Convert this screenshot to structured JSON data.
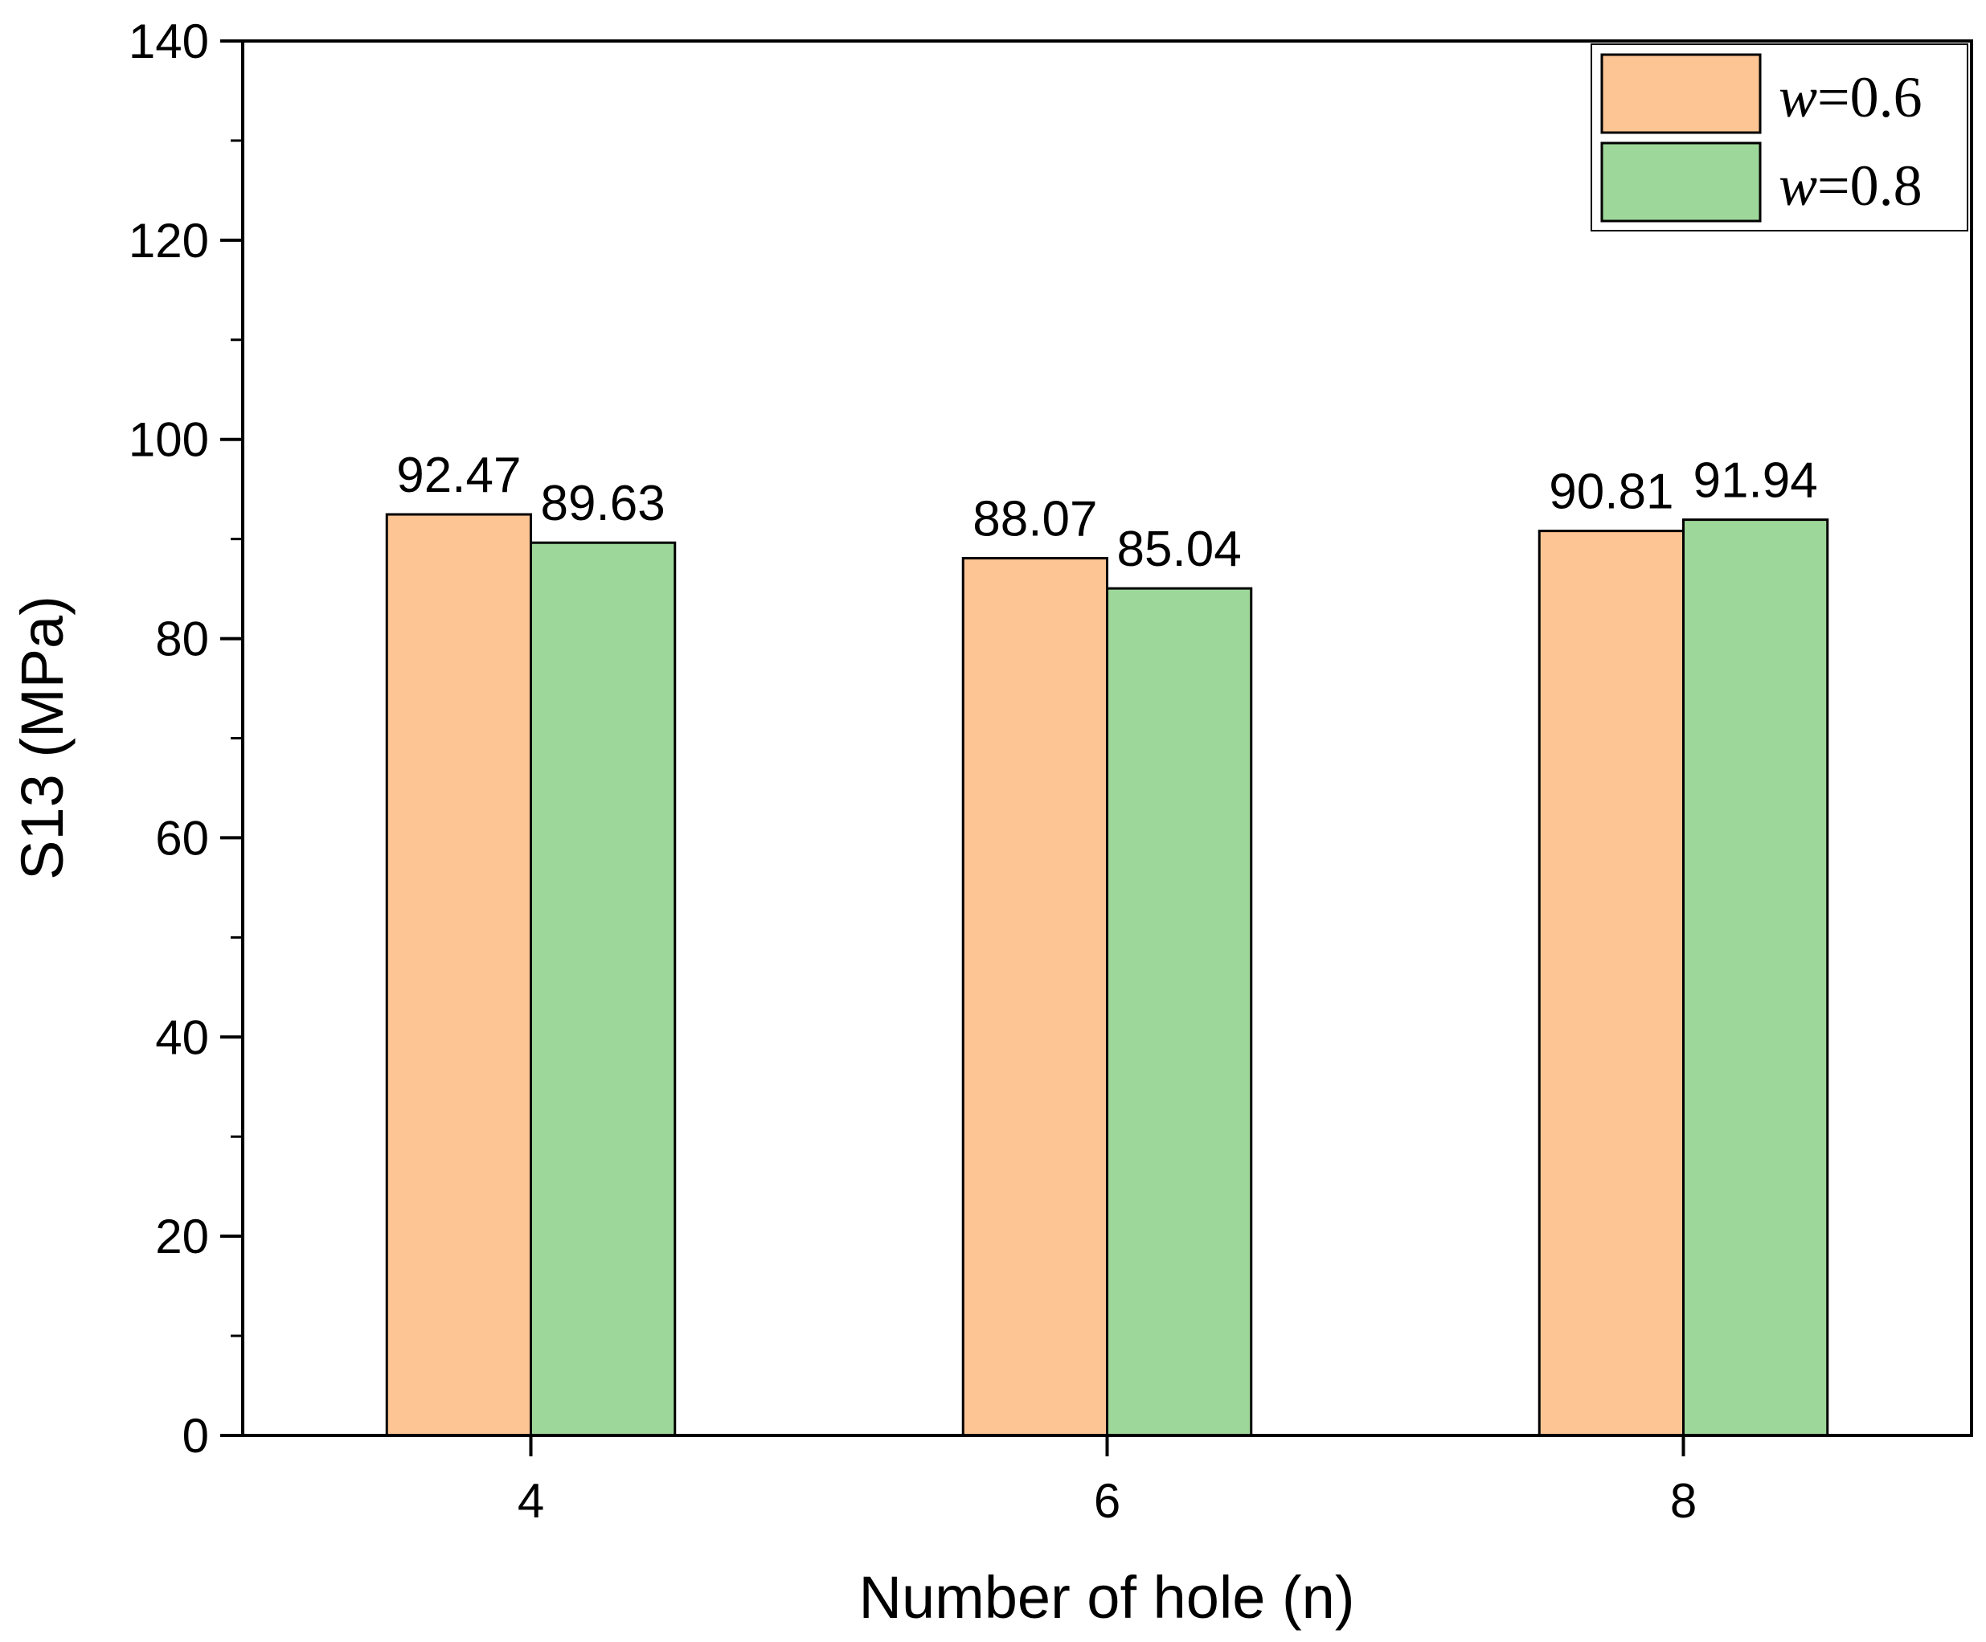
{
  "chart_data": {
    "type": "bar",
    "title": "",
    "xlabel": "Number of hole (n)",
    "ylabel": "S13 (MPa)",
    "categories": [
      "4",
      "6",
      "8"
    ],
    "ylim": [
      0,
      140
    ],
    "yticks": [
      0,
      20,
      40,
      60,
      80,
      100,
      120,
      140
    ],
    "ytick_labels": [
      "0",
      "20",
      "40",
      "60",
      "80",
      "100",
      "120",
      "140"
    ],
    "legend_position": "top-right",
    "series": [
      {
        "name": "w=0.6",
        "legend_var": "w",
        "legend_value": "=0.6",
        "color": "#FDC594",
        "values": [
          92.47,
          88.07,
          90.81
        ],
        "labels": [
          "92.47",
          "88.07",
          "90.81"
        ]
      },
      {
        "name": "w=0.8",
        "legend_var": "w",
        "legend_value": "=0.8",
        "color": "#9ED79A",
        "values": [
          89.63,
          85.04,
          91.94
        ],
        "labels": [
          "89.63",
          "85.04",
          "91.94"
        ]
      }
    ]
  }
}
